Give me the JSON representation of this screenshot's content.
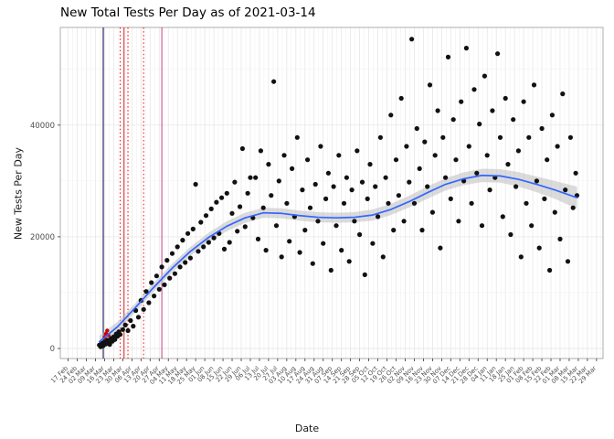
{
  "chart_data": {
    "type": "scatter",
    "title": "New Total Tests Per Day as of 2021-03-14",
    "xlabel": "Date",
    "ylabel": "New Tests Per Day",
    "legend": "none",
    "grid": "on",
    "xlim": [
      -6,
      411
    ],
    "ylim": [
      -1800,
      57500
    ],
    "y_ticks": [
      0,
      20000,
      40000
    ],
    "y_minor_ticks": [
      10000,
      30000,
      50000
    ],
    "x_tick_days": [
      0,
      7,
      14,
      21,
      28,
      35,
      42,
      49,
      56,
      63,
      70,
      77,
      84,
      91,
      98,
      105,
      112,
      119,
      126,
      133,
      140,
      147,
      154,
      161,
      168,
      175,
      182,
      189,
      196,
      203,
      210,
      217,
      224,
      231,
      238,
      245,
      252,
      259,
      266,
      273,
      280,
      287,
      294,
      301,
      308,
      315,
      322,
      329,
      336,
      343,
      350,
      357,
      364,
      371,
      378,
      385,
      392,
      399,
      406
    ],
    "x_tick_labels": [
      "17 Feb",
      "24 Feb",
      "02 Mar",
      "09 Mar",
      "16 Mar",
      "23 Mar",
      "30 Mar",
      "06 Apr",
      "13 Apr",
      "20 Apr",
      "27 Apr",
      "04 May",
      "11 May",
      "18 May",
      "25 May",
      "01 Jun",
      "08 Jun",
      "15 Jun",
      "22 Jun",
      "29 Jun",
      "06 Jul",
      "13 Jul",
      "20 Jul",
      "27 Jul",
      "03 Aug",
      "10 Aug",
      "17 Aug",
      "24 Aug",
      "31 Aug",
      "07 Sep",
      "14 Sep",
      "21 Sep",
      "28 Sep",
      "05 Oct",
      "12 Oct",
      "19 Oct",
      "26 Oct",
      "02 Nov",
      "09 Nov",
      "16 Nov",
      "23 Nov",
      "30 Nov",
      "07 Dec",
      "14 Dec",
      "21 Dec",
      "28 Dec",
      "04 Jan",
      "11 Jan",
      "18 Jan",
      "25 Jan",
      "01 Feb",
      "08 Feb",
      "15 Feb",
      "22 Feb",
      "01 Mar",
      "08 Mar",
      "15 Mar",
      "22 Mar",
      "29 Mar"
    ],
    "colors": {
      "point": "#111111",
      "highlight_point": "#cc0000",
      "smooth_line": "#3366ff",
      "band": "#bdbdbd",
      "grid_major": "#e3e3e3",
      "grid_minor": "#f1f1f1",
      "panel_border": "#999999",
      "axis_text": "#4d4d4d",
      "tick_mark": "#333333"
    },
    "vlines": [
      {
        "day": 27,
        "color": "#00004d",
        "style": "solid"
      },
      {
        "day": 40,
        "color": "#ff0000",
        "style": "dotted"
      },
      {
        "day": 43,
        "color": "#dd2222",
        "style": "solid"
      },
      {
        "day": 46,
        "color": "#ff0000",
        "style": "dotted"
      },
      {
        "day": 58,
        "color": "#ff0000",
        "style": "dotted"
      },
      {
        "day": 72,
        "color": "#c04080",
        "style": "solid"
      }
    ],
    "smooth": [
      [
        24,
        1200,
        1100
      ],
      [
        38,
        3900,
        900
      ],
      [
        52,
        7400,
        800
      ],
      [
        66,
        11000,
        800
      ],
      [
        80,
        14400,
        800
      ],
      [
        94,
        17400,
        800
      ],
      [
        108,
        19900,
        850
      ],
      [
        122,
        21900,
        900
      ],
      [
        136,
        23400,
        900
      ],
      [
        150,
        24300,
        900
      ],
      [
        164,
        24200,
        900
      ],
      [
        178,
        23800,
        900
      ],
      [
        192,
        23500,
        900
      ],
      [
        206,
        23400,
        900
      ],
      [
        220,
        23500,
        900
      ],
      [
        234,
        23900,
        1000
      ],
      [
        248,
        24900,
        1000
      ],
      [
        262,
        26300,
        1050
      ],
      [
        276,
        27900,
        1100
      ],
      [
        290,
        29400,
        1100
      ],
      [
        304,
        30400,
        1150
      ],
      [
        318,
        31000,
        1200
      ],
      [
        332,
        30900,
        1200
      ],
      [
        346,
        30300,
        1300
      ],
      [
        360,
        29400,
        1400
      ],
      [
        374,
        28400,
        1600
      ],
      [
        391,
        27000,
        2000
      ]
    ],
    "highlight_points": [
      [
        28,
        2000
      ],
      [
        29,
        2600
      ],
      [
        30,
        3200
      ],
      [
        31,
        2400
      ]
    ],
    "points": [
      [
        24,
        600
      ],
      [
        25,
        300
      ],
      [
        26,
        900
      ],
      [
        27,
        500
      ],
      [
        28,
        1200
      ],
      [
        29,
        800
      ],
      [
        30,
        1500
      ],
      [
        31,
        1100
      ],
      [
        32,
        700
      ],
      [
        33,
        1800
      ],
      [
        34,
        1300
      ],
      [
        35,
        2100
      ],
      [
        36,
        1600
      ],
      [
        37,
        2600
      ],
      [
        38,
        2200
      ],
      [
        39,
        3000
      ],
      [
        40,
        2500
      ],
      [
        42,
        3400
      ],
      [
        44,
        4200
      ],
      [
        46,
        3200
      ],
      [
        48,
        5000
      ],
      [
        50,
        4000
      ],
      [
        52,
        6800
      ],
      [
        54,
        5600
      ],
      [
        56,
        8600
      ],
      [
        58,
        7000
      ],
      [
        60,
        10200
      ],
      [
        62,
        8200
      ],
      [
        64,
        11800
      ],
      [
        66,
        9400
      ],
      [
        68,
        13000
      ],
      [
        70,
        10600
      ],
      [
        72,
        14600
      ],
      [
        74,
        11400
      ],
      [
        76,
        15800
      ],
      [
        78,
        12600
      ],
      [
        80,
        17000
      ],
      [
        82,
        13400
      ],
      [
        84,
        18200
      ],
      [
        86,
        14600
      ],
      [
        88,
        19400
      ],
      [
        90,
        15400
      ],
      [
        92,
        20600
      ],
      [
        94,
        16200
      ],
      [
        96,
        21400
      ],
      [
        98,
        29400
      ],
      [
        100,
        17400
      ],
      [
        102,
        22600
      ],
      [
        104,
        18200
      ],
      [
        106,
        23800
      ],
      [
        108,
        19000
      ],
      [
        110,
        25000
      ],
      [
        112,
        19800
      ],
      [
        114,
        26200
      ],
      [
        116,
        20600
      ],
      [
        118,
        27000
      ],
      [
        120,
        17800
      ],
      [
        122,
        27800
      ],
      [
        124,
        19000
      ],
      [
        126,
        24200
      ],
      [
        128,
        29800
      ],
      [
        130,
        21000
      ],
      [
        132,
        25400
      ],
      [
        134,
        35800
      ],
      [
        136,
        21800
      ],
      [
        138,
        27800
      ],
      [
        140,
        30600
      ],
      [
        142,
        23400
      ],
      [
        144,
        30600
      ],
      [
        146,
        19600
      ],
      [
        148,
        35400
      ],
      [
        150,
        25200
      ],
      [
        152,
        17600
      ],
      [
        154,
        33000
      ],
      [
        156,
        27400
      ],
      [
        158,
        47800
      ],
      [
        160,
        22000
      ],
      [
        162,
        30000
      ],
      [
        164,
        16400
      ],
      [
        166,
        34600
      ],
      [
        168,
        26000
      ],
      [
        170,
        19200
      ],
      [
        172,
        32200
      ],
      [
        174,
        23600
      ],
      [
        176,
        37800
      ],
      [
        178,
        17200
      ],
      [
        180,
        28400
      ],
      [
        182,
        21200
      ],
      [
        184,
        33800
      ],
      [
        186,
        25200
      ],
      [
        188,
        15200
      ],
      [
        190,
        29400
      ],
      [
        192,
        22800
      ],
      [
        194,
        36200
      ],
      [
        196,
        18800
      ],
      [
        198,
        26800
      ],
      [
        200,
        31400
      ],
      [
        202,
        14000
      ],
      [
        204,
        29000
      ],
      [
        206,
        22000
      ],
      [
        208,
        34600
      ],
      [
        210,
        17600
      ],
      [
        212,
        26000
      ],
      [
        214,
        30600
      ],
      [
        216,
        15600
      ],
      [
        218,
        28400
      ],
      [
        220,
        22800
      ],
      [
        222,
        35400
      ],
      [
        224,
        20400
      ],
      [
        226,
        29800
      ],
      [
        228,
        13200
      ],
      [
        230,
        26800
      ],
      [
        232,
        33000
      ],
      [
        234,
        18800
      ],
      [
        236,
        29000
      ],
      [
        238,
        23600
      ],
      [
        240,
        37800
      ],
      [
        242,
        16400
      ],
      [
        244,
        30600
      ],
      [
        246,
        26000
      ],
      [
        248,
        41800
      ],
      [
        250,
        21200
      ],
      [
        252,
        33800
      ],
      [
        254,
        27400
      ],
      [
        256,
        44800
      ],
      [
        258,
        22800
      ],
      [
        260,
        36200
      ],
      [
        262,
        29800
      ],
      [
        264,
        55400
      ],
      [
        266,
        26000
      ],
      [
        268,
        39400
      ],
      [
        270,
        32200
      ],
      [
        272,
        21200
      ],
      [
        274,
        37000
      ],
      [
        276,
        29000
      ],
      [
        278,
        47200
      ],
      [
        280,
        24400
      ],
      [
        282,
        34600
      ],
      [
        284,
        42600
      ],
      [
        286,
        18000
      ],
      [
        288,
        37800
      ],
      [
        290,
        30600
      ],
      [
        292,
        52200
      ],
      [
        294,
        26800
      ],
      [
        296,
        41000
      ],
      [
        298,
        33800
      ],
      [
        300,
        22800
      ],
      [
        302,
        44200
      ],
      [
        304,
        30000
      ],
      [
        306,
        53800
      ],
      [
        308,
        36200
      ],
      [
        310,
        26000
      ],
      [
        312,
        46400
      ],
      [
        314,
        31400
      ],
      [
        316,
        40200
      ],
      [
        318,
        22000
      ],
      [
        320,
        48800
      ],
      [
        322,
        34600
      ],
      [
        324,
        28400
      ],
      [
        326,
        42600
      ],
      [
        328,
        30600
      ],
      [
        330,
        52800
      ],
      [
        332,
        37800
      ],
      [
        334,
        23600
      ],
      [
        336,
        44800
      ],
      [
        338,
        33000
      ],
      [
        340,
        20400
      ],
      [
        342,
        41000
      ],
      [
        344,
        29000
      ],
      [
        346,
        35400
      ],
      [
        348,
        16400
      ],
      [
        350,
        44200
      ],
      [
        352,
        26000
      ],
      [
        354,
        37800
      ],
      [
        356,
        22000
      ],
      [
        358,
        47200
      ],
      [
        360,
        30000
      ],
      [
        362,
        18000
      ],
      [
        364,
        39400
      ],
      [
        366,
        26800
      ],
      [
        368,
        33800
      ],
      [
        370,
        14000
      ],
      [
        372,
        41800
      ],
      [
        374,
        24400
      ],
      [
        376,
        36200
      ],
      [
        378,
        19600
      ],
      [
        380,
        45600
      ],
      [
        382,
        28400
      ],
      [
        384,
        15600
      ],
      [
        386,
        37800
      ],
      [
        388,
        25200
      ],
      [
        390,
        31400
      ],
      [
        391,
        27400
      ]
    ]
  }
}
